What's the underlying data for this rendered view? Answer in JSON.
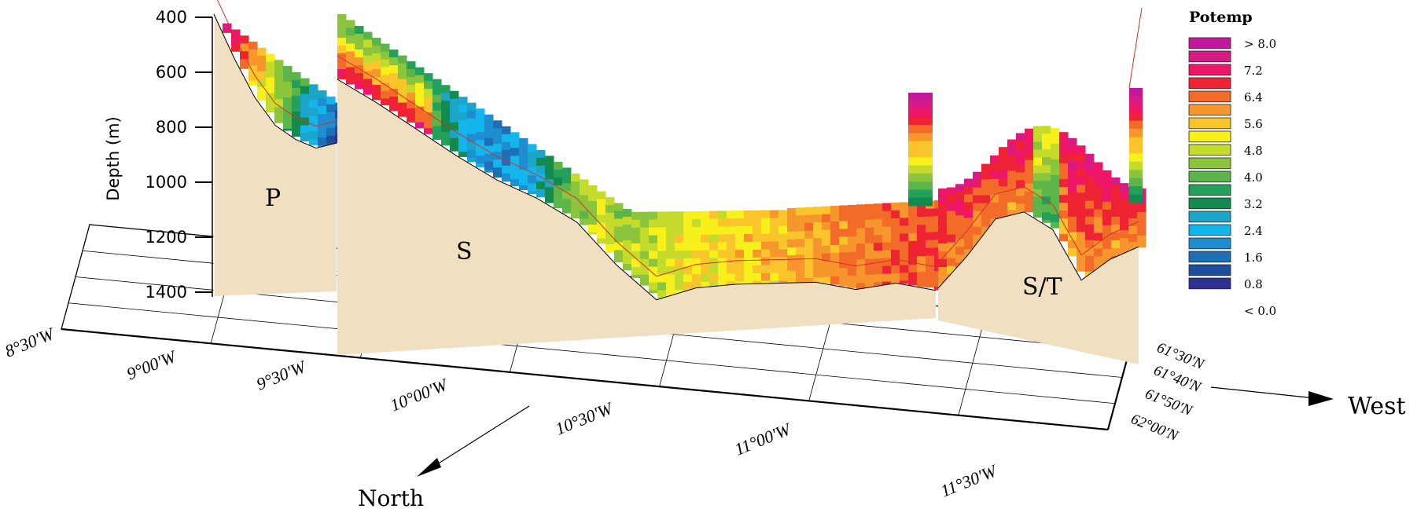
{
  "chart_data": {
    "type": "heatmap",
    "title": "",
    "ylabel": "Depth (m)",
    "ylim": [
      1400,
      400
    ],
    "y_ticks": [
      "400",
      "600",
      "800",
      "1000",
      "1200",
      "1400"
    ],
    "y_tick_values": [
      400,
      600,
      800,
      1000,
      1200,
      1400
    ],
    "x_axis_ticks": [
      "8°30'W",
      "9°00'W",
      "9°30'W",
      "10°00'W",
      "10°30'W",
      "11°00'W",
      "11°30'W"
    ],
    "z_axis_ticks": [
      "61°30'N",
      "61°40'N",
      "61°50'N",
      "62°00'N"
    ],
    "direction_labels": {
      "north": "North",
      "west": "West"
    },
    "sections": [
      {
        "name": "P",
        "bottom_depth_profile": [
          400,
          560,
          700,
          800,
          850,
          880,
          860
        ]
      },
      {
        "name": "S",
        "bottom_depth_profile": [
          620,
          700,
          790,
          880,
          960,
          1020,
          1100,
          1250,
          1370,
          1320,
          1300,
          1290,
          1280,
          1300,
          1270,
          1290
        ]
      },
      {
        "name": "S/T",
        "bottom_depth_profile": [
          1380,
          1260,
          1120,
          1090,
          1150,
          1330,
          1250,
          1200
        ]
      }
    ],
    "colorbar": {
      "title": "Potemp",
      "labels": [
        "> 8.0",
        "7.2",
        "6.4",
        "5.6",
        "4.8",
        "4.0",
        "3.2",
        "2.4",
        "1.6",
        "0.8",
        "< 0.0"
      ],
      "colors": [
        "#c2189c",
        "#d81b84",
        "#ef1668",
        "#ee2333",
        "#f36b28",
        "#f7962c",
        "#fac42b",
        "#f7f01a",
        "#c5db2c",
        "#8ac53d",
        "#5bb54a",
        "#23a15a",
        "#138b4f",
        "#1ba6c9",
        "#12b5ec",
        "#1e8ed1",
        "#1e6fb5",
        "#1d4e9d",
        "#2e3192"
      ]
    }
  }
}
